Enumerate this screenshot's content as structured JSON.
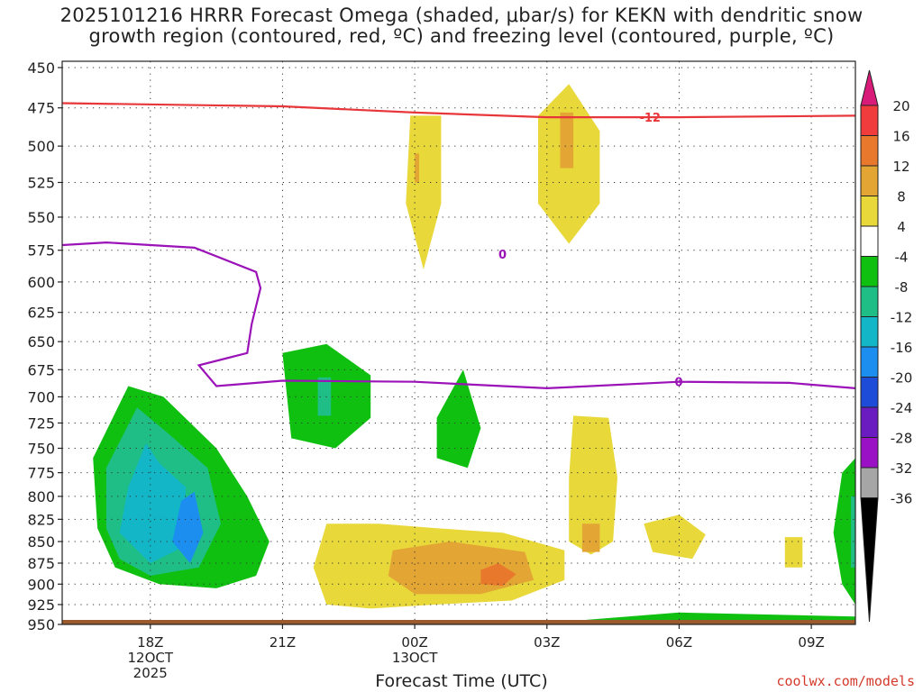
{
  "chart_data": {
    "type": "heatmap",
    "title_lines": [
      "2025101216 HRRR Forecast Omega (shaded, μbar/s) for KEKN with dendritic snow",
      "growth region (contoured, red, ºC) and freezing level (contoured, purple, ºC)"
    ],
    "xlabel": "Forecast Time (UTC)",
    "x_ticks": [
      {
        "label": [
          "18Z",
          "12OCT",
          "2025"
        ],
        "hour": 1
      },
      {
        "label": [
          "21Z"
        ],
        "hour": 4
      },
      {
        "label": [
          "00Z",
          "13OCT"
        ],
        "hour": 7
      },
      {
        "label": [
          "03Z"
        ],
        "hour": 10
      },
      {
        "label": [
          "06Z"
        ],
        "hour": 13
      },
      {
        "label": [
          "09Z"
        ],
        "hour": 16
      }
    ],
    "xlim": [
      -1,
      17
    ],
    "ylabel": "",
    "pressure_levels": [
      450,
      475,
      500,
      525,
      550,
      575,
      600,
      625,
      650,
      675,
      700,
      725,
      750,
      775,
      800,
      825,
      850,
      875,
      900,
      925,
      950
    ],
    "ylim": [
      450,
      950
    ],
    "grid": true,
    "colorbar": {
      "units": "μbar/s",
      "labels": [
        "20",
        "16",
        "12",
        "8",
        "4",
        "-4",
        "-8",
        "-12",
        "-16",
        "-20",
        "-24",
        "-28",
        "-32",
        "-36"
      ],
      "colors": [
        "#d81b78",
        "#f03c3c",
        "#e8782c",
        "#e3a634",
        "#e8d83a",
        "#ffffff",
        "#10c010",
        "#1ebe86",
        "#12b6c6",
        "#1c8ef0",
        "#1d4cd8",
        "#6a1cc0",
        "#9a10c4",
        "#a6a6a6",
        "#000000"
      ]
    },
    "contours": [
      {
        "name": "dendritic snow growth region",
        "color": "#e8373a",
        "level_label": "-12",
        "points": [
          [
            -1,
            472
          ],
          [
            4,
            474
          ],
          [
            7,
            478
          ],
          [
            10,
            481
          ],
          [
            13,
            481
          ],
          [
            17,
            480
          ]
        ]
      },
      {
        "name": "freezing level",
        "color": "#9b12b8",
        "level_label": "0",
        "points": [
          [
            -1,
            571
          ],
          [
            0,
            569
          ],
          [
            2,
            573
          ],
          [
            3.4,
            592
          ],
          [
            3.5,
            605
          ],
          [
            3.3,
            635
          ],
          [
            3.2,
            660
          ],
          [
            2.1,
            671
          ],
          [
            2.5,
            690
          ],
          [
            4,
            685
          ],
          [
            7,
            686
          ],
          [
            8,
            688
          ],
          [
            10,
            692
          ],
          [
            13,
            686
          ],
          [
            15.5,
            687
          ],
          [
            17,
            692
          ]
        ]
      }
    ],
    "omega_regions": [
      {
        "value": 4,
        "points": [
          [
            6.8,
            452
          ],
          [
            7.9,
            452
          ],
          [
            8.3,
            480
          ],
          [
            8.3,
            540
          ],
          [
            7.8,
            600
          ],
          [
            7.2,
            640
          ],
          [
            7,
            675
          ],
          [
            6.8,
            640
          ],
          [
            6.4,
            590
          ],
          [
            6.2,
            520
          ],
          [
            6.4,
            470
          ]
        ]
      },
      {
        "value": 8,
        "points": [
          [
            6.9,
            480
          ],
          [
            7.6,
            480
          ],
          [
            7.6,
            540
          ],
          [
            7.2,
            590
          ],
          [
            6.8,
            540
          ]
        ]
      },
      {
        "value": 12,
        "points": [
          [
            7.0,
            505
          ],
          [
            7.1,
            505
          ],
          [
            7.1,
            525
          ],
          [
            7.0,
            525
          ]
        ]
      },
      {
        "value": 4,
        "points": [
          [
            9.6,
            460
          ],
          [
            10.8,
            452
          ],
          [
            12.0,
            470
          ],
          [
            12.3,
            520
          ],
          [
            11.5,
            580
          ],
          [
            11.0,
            640
          ],
          [
            10.8,
            700
          ],
          [
            11.5,
            750
          ],
          [
            12.0,
            800
          ],
          [
            12.7,
            820
          ],
          [
            13.4,
            805
          ],
          [
            14.0,
            770
          ],
          [
            14.3,
            700
          ],
          [
            15.0,
            660
          ],
          [
            15.6,
            620
          ],
          [
            16.3,
            560
          ],
          [
            16.0,
            480
          ],
          [
            16.2,
            452
          ],
          [
            16.7,
            480
          ],
          [
            17,
            520
          ],
          [
            17,
            700
          ],
          [
            16.5,
            720
          ],
          [
            16.0,
            740
          ],
          [
            15.5,
            760
          ],
          [
            15.0,
            780
          ],
          [
            15.3,
            810
          ],
          [
            15.8,
            845
          ],
          [
            15.6,
            880
          ],
          [
            15.0,
            900
          ],
          [
            14.5,
            880
          ],
          [
            14.2,
            860
          ],
          [
            14.0,
            875
          ],
          [
            13.4,
            880
          ],
          [
            12.5,
            870
          ],
          [
            11.6,
            860
          ],
          [
            11.5,
            900
          ],
          [
            11.0,
            930
          ],
          [
            10.0,
            940
          ],
          [
            9.5,
            940
          ],
          [
            9.2,
            930
          ],
          [
            9.0,
            910
          ],
          [
            8.3,
            920
          ],
          [
            7.0,
            930
          ],
          [
            6.0,
            950
          ],
          [
            5.0,
            950
          ],
          [
            4.5,
            900
          ],
          [
            4.2,
            840
          ],
          [
            4.6,
            810
          ],
          [
            5.5,
            790
          ],
          [
            6.7,
            810
          ],
          [
            8.5,
            822
          ],
          [
            9.7,
            815
          ],
          [
            10.2,
            790
          ],
          [
            10.6,
            740
          ],
          [
            10.4,
            700
          ],
          [
            10.0,
            650
          ],
          [
            9.3,
            620
          ],
          [
            9.0,
            560
          ],
          [
            9.2,
            500
          ]
        ]
      },
      {
        "value": 8,
        "points": [
          [
            9.8,
            480
          ],
          [
            10.5,
            460
          ],
          [
            11.2,
            490
          ],
          [
            11.2,
            540
          ],
          [
            10.5,
            570
          ],
          [
            9.8,
            540
          ]
        ]
      },
      {
        "value": 12,
        "points": [
          [
            10.3,
            478
          ],
          [
            10.6,
            478
          ],
          [
            10.6,
            515
          ],
          [
            10.3,
            515
          ]
        ]
      },
      {
        "value": 8,
        "points": [
          [
            10.6,
            718
          ],
          [
            11.4,
            720
          ],
          [
            11.6,
            780
          ],
          [
            11.5,
            850
          ],
          [
            11.0,
            865
          ],
          [
            10.5,
            850
          ],
          [
            10.5,
            780
          ]
        ]
      },
      {
        "value": 12,
        "points": [
          [
            10.8,
            830
          ],
          [
            11.2,
            830
          ],
          [
            11.2,
            862
          ],
          [
            10.8,
            862
          ]
        ]
      },
      {
        "value": 8,
        "points": [
          [
            12.2,
            830
          ],
          [
            13.0,
            820
          ],
          [
            13.6,
            842
          ],
          [
            13.3,
            870
          ],
          [
            12.4,
            862
          ]
        ]
      },
      {
        "value": 8,
        "points": [
          [
            15.4,
            845
          ],
          [
            15.8,
            845
          ],
          [
            15.8,
            880
          ],
          [
            15.4,
            880
          ]
        ]
      },
      {
        "value": 8,
        "points": [
          [
            5.0,
            830
          ],
          [
            6.2,
            830
          ],
          [
            7.5,
            835
          ],
          [
            9.0,
            840
          ],
          [
            10.4,
            860
          ],
          [
            10.4,
            895
          ],
          [
            9.2,
            920
          ],
          [
            7.5,
            925
          ],
          [
            6.0,
            930
          ],
          [
            5.0,
            925
          ],
          [
            4.7,
            880
          ]
        ]
      },
      {
        "value": 12,
        "points": [
          [
            6.5,
            860
          ],
          [
            7.8,
            850
          ],
          [
            9.5,
            862
          ],
          [
            9.7,
            895
          ],
          [
            8.5,
            912
          ],
          [
            7.0,
            912
          ],
          [
            6.4,
            890
          ]
        ]
      },
      {
        "value": 16,
        "points": [
          [
            8.5,
            883
          ],
          [
            8.9,
            875
          ],
          [
            9.3,
            888
          ],
          [
            9.0,
            902
          ],
          [
            8.5,
            900
          ]
        ]
      },
      {
        "value": -4,
        "points": [
          [
            0.5,
            690
          ],
          [
            1.3,
            700
          ],
          [
            2.5,
            750
          ],
          [
            3.2,
            800
          ],
          [
            3.7,
            850
          ],
          [
            3.4,
            890
          ],
          [
            2.5,
            905
          ],
          [
            1.2,
            900
          ],
          [
            0.2,
            880
          ],
          [
            -0.2,
            835
          ],
          [
            -0.3,
            760
          ]
        ]
      },
      {
        "value": -8,
        "points": [
          [
            0.7,
            710
          ],
          [
            1.4,
            735
          ],
          [
            2.3,
            770
          ],
          [
            2.6,
            830
          ],
          [
            2.1,
            880
          ],
          [
            1.0,
            890
          ],
          [
            0.3,
            870
          ],
          [
            0.0,
            835
          ],
          [
            0.0,
            770
          ]
        ]
      },
      {
        "value": -12,
        "points": [
          [
            0.9,
            745
          ],
          [
            1.2,
            765
          ],
          [
            1.8,
            790
          ],
          [
            1.8,
            855
          ],
          [
            1.0,
            875
          ],
          [
            0.3,
            840
          ],
          [
            0.5,
            790
          ]
        ]
      },
      {
        "value": -16,
        "points": [
          [
            1.7,
            805
          ],
          [
            2.0,
            795
          ],
          [
            2.2,
            840
          ],
          [
            1.9,
            875
          ],
          [
            1.5,
            850
          ]
        ]
      },
      {
        "value": -4,
        "points": [
          [
            4.0,
            660
          ],
          [
            5.0,
            652
          ],
          [
            6.0,
            680
          ],
          [
            6.0,
            720
          ],
          [
            5.2,
            750
          ],
          [
            4.2,
            740
          ]
        ]
      },
      {
        "value": -8,
        "points": [
          [
            4.8,
            682
          ],
          [
            5.1,
            682
          ],
          [
            5.1,
            718
          ],
          [
            4.8,
            718
          ]
        ]
      },
      {
        "value": -4,
        "points": [
          [
            7.5,
            720
          ],
          [
            8.1,
            675
          ],
          [
            8.5,
            730
          ],
          [
            8.2,
            770
          ],
          [
            7.5,
            760
          ]
        ]
      },
      {
        "value": -4,
        "points": [
          [
            16.7,
            775
          ],
          [
            17,
            760
          ],
          [
            17,
            925
          ],
          [
            16.7,
            900
          ],
          [
            16.5,
            840
          ]
        ]
      },
      {
        "value": -8,
        "points": [
          [
            16.9,
            800
          ],
          [
            17,
            800
          ],
          [
            17,
            880
          ],
          [
            16.9,
            880
          ]
        ]
      },
      {
        "value": -4,
        "points": [
          [
            10,
            948
          ],
          [
            13,
            935
          ],
          [
            17,
            940
          ],
          [
            17,
            948
          ]
        ]
      }
    ]
  }
}
